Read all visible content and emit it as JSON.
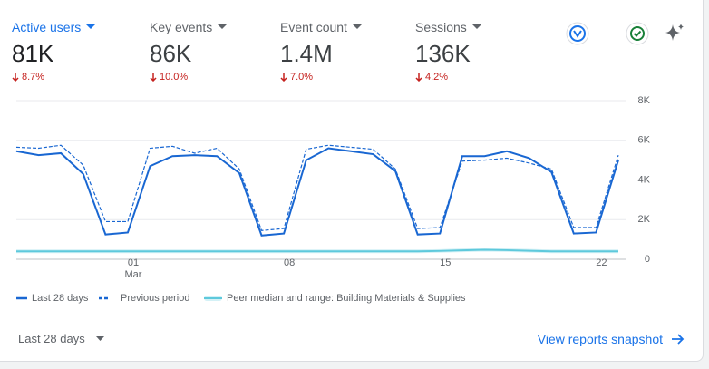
{
  "metrics": [
    {
      "label": "Active users",
      "value": "81K",
      "change": "8.7%"
    },
    {
      "label": "Key events",
      "value": "86K",
      "change": "10.0%"
    },
    {
      "label": "Event count",
      "value": "1.4M",
      "change": "7.0%"
    },
    {
      "label": "Sessions",
      "value": "136K",
      "change": "4.2%"
    }
  ],
  "chart_data": {
    "type": "line",
    "categories": [
      null,
      null,
      null,
      null,
      null,
      "01 Mar",
      null,
      null,
      null,
      null,
      null,
      null,
      "08",
      null,
      null,
      null,
      null,
      null,
      null,
      "15",
      null,
      null,
      null,
      null,
      null,
      null,
      "22",
      null
    ],
    "series": [
      {
        "name": "Last 28 days",
        "color": "#1967d2",
        "dashed": false,
        "values": [
          5450,
          5250,
          5350,
          4300,
          1250,
          1350,
          4700,
          5200,
          5250,
          5200,
          4350,
          1200,
          1300,
          5000,
          5600,
          5450,
          5300,
          4450,
          1250,
          1300,
          5200,
          5200,
          5450,
          5100,
          4400,
          1300,
          1350,
          5000
        ]
      },
      {
        "name": "Previous period",
        "color": "#1967d2",
        "dashed": true,
        "values": [
          5650,
          5600,
          5750,
          4750,
          1900,
          1900,
          5600,
          5700,
          5350,
          5600,
          4550,
          1450,
          1550,
          5550,
          5750,
          5650,
          5550,
          4550,
          1550,
          1600,
          4950,
          5000,
          5100,
          4850,
          4550,
          1600,
          1600,
          5250
        ]
      },
      {
        "name": "Peer median and range: Building Materials & Supplies",
        "color": "#5ec9dc",
        "dashed": false,
        "values": [
          400,
          400,
          400,
          400,
          400,
          400,
          400,
          400,
          400,
          400,
          400,
          400,
          400,
          400,
          400,
          400,
          400,
          400,
          400,
          420,
          450,
          480,
          460,
          430,
          400,
          400,
          400,
          400
        ]
      }
    ],
    "ylim": [
      0,
      8000
    ],
    "yticks": [
      0,
      {
        "value": 2000,
        "label": "2K"
      },
      {
        "value": 4000,
        "label": "4K"
      },
      {
        "value": 6000,
        "label": "6K"
      },
      {
        "value": 8000,
        "label": "8K"
      }
    ],
    "grid": true
  },
  "footer": {
    "range": "Last 28 days",
    "link": "View reports snapshot"
  }
}
